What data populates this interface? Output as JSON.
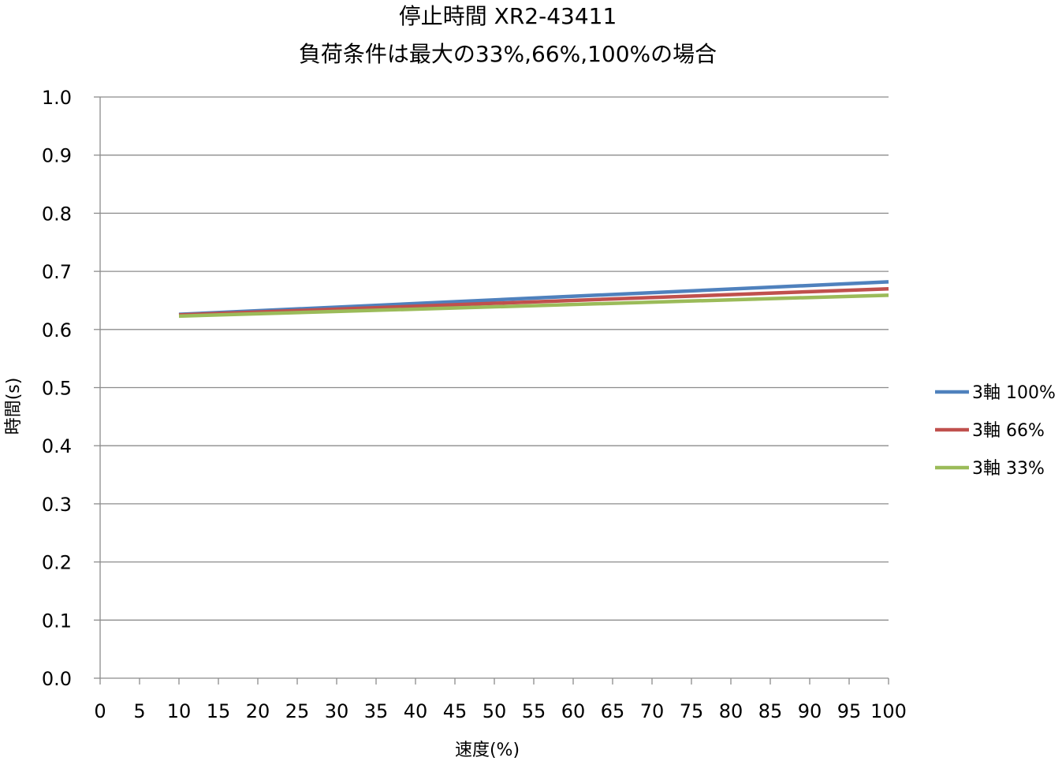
{
  "chart_data": {
    "type": "line",
    "title": [
      "停止時間 XR2-43411",
      "負荷条件は最大の33%,66%,100%の場合"
    ],
    "xlabel": "速度(%)",
    "ylabel": "時間(s)",
    "xlim": [
      0,
      100
    ],
    "ylim": [
      0.0,
      1.0
    ],
    "xticks": [
      "0",
      "5",
      "10",
      "15",
      "20",
      "25",
      "30",
      "35",
      "40",
      "45",
      "50",
      "55",
      "60",
      "65",
      "70",
      "75",
      "80",
      "85",
      "90",
      "95",
      "100"
    ],
    "yticks": [
      "0.0",
      "0.1",
      "0.2",
      "0.3",
      "0.4",
      "0.5",
      "0.6",
      "0.7",
      "0.8",
      "0.9",
      "1.0"
    ],
    "grid": "horizontal",
    "legend_position": "right",
    "series": [
      {
        "name": "3軸 100%",
        "color": "#4F81BD",
        "x": [
          10,
          100
        ],
        "y": [
          0.626,
          0.682
        ]
      },
      {
        "name": "3軸 66%",
        "color": "#C0504D",
        "x": [
          10,
          100
        ],
        "y": [
          0.625,
          0.67
        ]
      },
      {
        "name": "3軸 33%",
        "color": "#9BBB59",
        "x": [
          10,
          100
        ],
        "y": [
          0.623,
          0.659
        ]
      }
    ]
  }
}
